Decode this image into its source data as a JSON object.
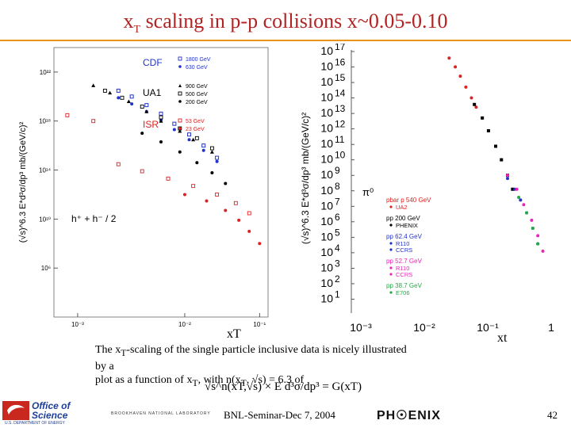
{
  "slide": {
    "title_main": "x",
    "title_sub": "T",
    "title_rest": " scaling in p-p collisions x~0.05-0.10",
    "caption_line1": "The x",
    "caption_line1_sub": "T",
    "caption_line1_rest": "-scaling of the single particle inclusive data is nicely illustrated by a",
    "caption_line2": "plot as a function of x",
    "caption_line2_sub": "T",
    "caption_line2_rest": ", with n(x",
    "caption_line2_sub2": "T",
    "caption_line2_tail": ", √s) = 6.3 of",
    "formula": "√s^n(xT,√s) × E d³σ/dp³ = G(xT)",
    "footer_center": "BNL-Seminar-Dec 7, 2004",
    "page_number": "42",
    "logo_line1": "Office of",
    "logo_line2": "Science",
    "logo_sub": "U.S. DEPARTMENT OF ENERGY",
    "bnl_text": "BROOKHAVEN NATIONAL LABORATORY",
    "phenix_text": "PH☉ENIX"
  },
  "colors": {
    "title": "#b22222",
    "rule": "#e8951c",
    "cdf": "#2233cc",
    "isr": "#dd2222",
    "pink": "#ee22bb",
    "green": "#22aa44"
  },
  "chart_data": [
    {
      "type": "scatter",
      "title": "",
      "xlabel": "xT",
      "ylabel": "(√s)^6.3 E*d³σ/dp³ mb/(GeV/c)²",
      "xscale": "log",
      "yscale": "log",
      "xlim": [
        0.003,
        0.3
      ],
      "ylim": [
        100.0,
        1e+24
      ],
      "x_ticks": [
        "10⁻³",
        "10⁻²",
        "10⁻¹"
      ],
      "y_ticks": [
        "10²²",
        "10¹⁸",
        "10¹⁴",
        "10¹⁰",
        "10⁶"
      ],
      "annotation": "h⁺ + h⁻ / 2",
      "legend_groups": [
        {
          "experiment": "CDF",
          "entries": [
            "1800 GeV",
            "630 GeV"
          ]
        },
        {
          "experiment": "UA1",
          "entries": [
            "900 GeV",
            "500 GeV",
            "200 GeV"
          ]
        },
        {
          "experiment": "ISR",
          "entries": [
            "53 GeV",
            "23 GeV"
          ]
        }
      ],
      "series": [
        {
          "name": "CDF 1800 GeV",
          "x": [
            0.012,
            0.016,
            0.022,
            0.03,
            0.04,
            0.055,
            0.075,
            0.1
          ],
          "y": [
            3e+20,
            1e+20,
            2e+19,
            4e+18,
            6e+17,
            8e+16,
            1e+16,
            1000000000000000.0
          ]
        },
        {
          "name": "CDF 630 GeV",
          "x": [
            0.012,
            0.016,
            0.022,
            0.03,
            0.04,
            0.055,
            0.075,
            0.1
          ],
          "y": [
            8e+19,
            2.5e+19,
            6e+18,
            1.2e+18,
            2e+17,
            3e+16,
            4000000000000000.0,
            500000000000000.0
          ]
        },
        {
          "name": "UA1 900 GeV",
          "x": [
            0.007,
            0.01,
            0.015,
            0.022,
            0.03,
            0.045,
            0.06,
            0.09
          ],
          "y": [
            8e+20,
            2e+20,
            4e+19,
            6e+18,
            1e+18,
            1.5e+17,
            3e+16,
            3000000000000000.0
          ]
        },
        {
          "name": "UA1 500 GeV",
          "x": [
            0.009,
            0.013,
            0.02,
            0.03,
            0.045,
            0.065,
            0.09
          ],
          "y": [
            3e+20,
            8e+19,
            1.5e+19,
            2e+18,
            2.5e+17,
            4e+16,
            6000000000000000.0
          ]
        },
        {
          "name": "UA1 200 GeV",
          "x": [
            0.02,
            0.03,
            0.045,
            0.065,
            0.09,
            0.12
          ],
          "y": [
            1e+17,
            2e+16,
            3000000000000000.0,
            400000000000000.0,
            60000000000000.0,
            8000000000000.0
          ]
        },
        {
          "name": "ISR 53 GeV",
          "x": [
            0.004,
            0.007,
            0.012,
            0.02,
            0.035,
            0.06,
            0.1,
            0.15,
            0.2
          ],
          "y": [
            3e+18,
            1e+18,
            300000000000000.0,
            80000000000000.0,
            20000000000000.0,
            5000000000000.0,
            1000000000000.0,
            200000000000.0,
            30000000000.0
          ]
        },
        {
          "name": "ISR 23 GeV",
          "x": [
            0.05,
            0.08,
            0.12,
            0.16,
            0.2,
            0.25
          ],
          "y": [
            1000000000000.0,
            300000000000.0,
            50000000000.0,
            8000000000.0,
            1000000000.0,
            100000000.0
          ]
        }
      ]
    },
    {
      "type": "scatter",
      "title": "",
      "xlabel": "xt",
      "ylabel": "(√s)^6.3 E*d³σ/dp³ mb/(GeV/c)²",
      "xscale": "log",
      "yscale": "log",
      "xlim": [
        0.001,
        1
      ],
      "ylim": [
        1,
        1e+17
      ],
      "x_ticks": [
        "10⁻³",
        "10⁻²",
        "10⁻¹",
        "1"
      ],
      "y_ticks": [
        "17",
        "16",
        "15",
        "14",
        "13",
        "12",
        "11",
        "10",
        "9",
        "8",
        "7",
        "6",
        "5",
        "4",
        "3",
        "2",
        "1"
      ],
      "y_tick_base": "10",
      "annotation": "π⁰",
      "legend_groups": [
        {
          "experiment": "pbar p  540 GeV",
          "entries": [
            "UA2"
          ]
        },
        {
          "experiment": "pp  200 GeV",
          "entries": [
            "PHENIX"
          ]
        },
        {
          "experiment": "pp  62.4 GeV",
          "entries": [
            "R110",
            "CCRS"
          ]
        },
        {
          "experiment": "pp  52.7 GeV",
          "entries": [
            "R110",
            "CCRS"
          ]
        },
        {
          "experiment": "pp  38.7 GeV",
          "entries": [
            "E706"
          ]
        }
      ],
      "series": [
        {
          "name": "UA2 540 GeV",
          "x": [
            0.012,
            0.015,
            0.018,
            0.022,
            0.027,
            0.032
          ],
          "y": [
            3e+16,
            8000000000000000.0,
            2000000000000000.0,
            400000000000000.0,
            80000000000000.0,
            20000000000000.0
          ]
        },
        {
          "name": "PHENIX 200 GeV",
          "x": [
            0.03,
            0.04,
            0.05,
            0.065,
            0.08,
            0.1,
            0.12
          ],
          "y": [
            30000000000000.0,
            4000000000000.0,
            600000000000.0,
            60000000000.0,
            8000000000.0,
            800000000.0,
            100000000.0
          ]
        },
        {
          "name": "R110/CCRS 62.4 GeV",
          "x": [
            0.1,
            0.13,
            0.16,
            0.2,
            0.25,
            0.3
          ],
          "y": [
            500000000.0,
            100000000.0,
            20000000.0,
            3000000.0,
            300000.0,
            30000.0
          ]
        },
        {
          "name": "R110/CCRS 52.7 GeV",
          "x": [
            0.1,
            0.14,
            0.18,
            0.24,
            0.3,
            0.36
          ],
          "y": [
            800000000.0,
            100000000.0,
            10000000.0,
            1000000.0,
            100000.0,
            10000.0
          ]
        },
        {
          "name": "E706 38.7 GeV",
          "x": [
            0.15,
            0.2,
            0.25,
            0.3
          ],
          "y": [
            30000000.0,
            3000000.0,
            300000.0,
            30000.0
          ]
        }
      ]
    }
  ]
}
